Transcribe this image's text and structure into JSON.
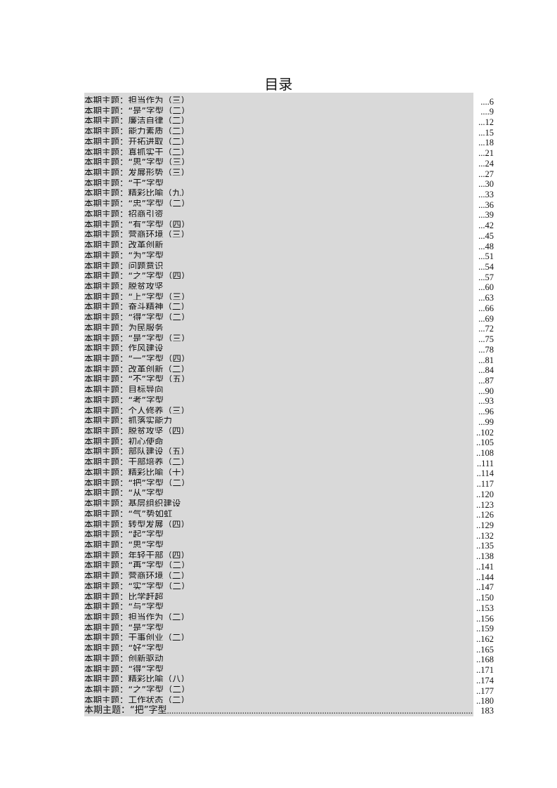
{
  "title": "目录",
  "prefix": "本期主题：",
  "entries": [
    {
      "topic": "担当作为（三）",
      "page": "6"
    },
    {
      "topic": "“是”字型（二）",
      "page": "9"
    },
    {
      "topic": "廉洁自律（二）",
      "page": "12"
    },
    {
      "topic": "能力素质（二）",
      "page": "15"
    },
    {
      "topic": "开拓进取（二）",
      "page": "18"
    },
    {
      "topic": "真抓实干（二）",
      "page": "21"
    },
    {
      "topic": "“思”字型（三）",
      "page": "24"
    },
    {
      "topic": "发展形势（三）",
      "page": "27"
    },
    {
      "topic": "“干”字型",
      "page": "30"
    },
    {
      "topic": "精彩比喻（九）",
      "page": "33"
    },
    {
      "topic": "“忠”字型（二）",
      "page": "36"
    },
    {
      "topic": "招商引资",
      "page": "39"
    },
    {
      "topic": "“有”字型（四）",
      "page": "42"
    },
    {
      "topic": "营商环境（三）",
      "page": "45"
    },
    {
      "topic": "改革创新",
      "page": "48"
    },
    {
      "topic": "“为”字型",
      "page": "51"
    },
    {
      "topic": "问题意识",
      "page": "54"
    },
    {
      "topic": "“之”字型（四）",
      "page": "57"
    },
    {
      "topic": "脱贫攻坚",
      "page": "60"
    },
    {
      "topic": "“上”字型（三）",
      "page": "63"
    },
    {
      "topic": "奋斗精神（二）",
      "page": "66"
    },
    {
      "topic": "“得”字型（二）",
      "page": "69"
    },
    {
      "topic": "为民服务",
      "page": "72"
    },
    {
      "topic": "“是”字型（三）",
      "page": "75"
    },
    {
      "topic": "作风建设",
      "page": "78"
    },
    {
      "topic": "“一”字型（四）",
      "page": "81"
    },
    {
      "topic": "改革创新（二）",
      "page": "84"
    },
    {
      "topic": "“不”字型（五）",
      "page": "87"
    },
    {
      "topic": "目标导向",
      "page": "90"
    },
    {
      "topic": "“考”字型",
      "page": "93"
    },
    {
      "topic": "个人修养（三）",
      "page": "96"
    },
    {
      "topic": "抓落实能力",
      "page": "99"
    },
    {
      "topic": "脱贫攻坚（四）",
      "page": "102"
    },
    {
      "topic": "初心使命",
      "page": "105"
    },
    {
      "topic": "部队建设（五）",
      "page": "108"
    },
    {
      "topic": "干部培养（二）",
      "page": "111"
    },
    {
      "topic": "精彩比喻（十）",
      "page": "114"
    },
    {
      "topic": "“把”字型（二）",
      "page": "117"
    },
    {
      "topic": "“从”字型",
      "page": "120"
    },
    {
      "topic": "基层组织建设",
      "page": "123"
    },
    {
      "topic": "“气”势如虹",
      "page": "126"
    },
    {
      "topic": "转型发展（四）",
      "page": "129"
    },
    {
      "topic": "“起”字型",
      "page": "132"
    },
    {
      "topic": "“思”字型",
      "page": "135"
    },
    {
      "topic": "年轻干部（四）",
      "page": "138"
    },
    {
      "topic": "“再”字型（二）",
      "page": "141"
    },
    {
      "topic": "营商环境（二）",
      "page": "144"
    },
    {
      "topic": "“实”字型（二）",
      "page": "147"
    },
    {
      "topic": "比学赶超",
      "page": "150"
    },
    {
      "topic": "“与”字型",
      "page": "153"
    },
    {
      "topic": "担当作为（二）",
      "page": "156"
    },
    {
      "topic": "“是”字型",
      "page": "159"
    },
    {
      "topic": "干事创业（二）",
      "page": "162"
    },
    {
      "topic": "“好”字型",
      "page": "165"
    },
    {
      "topic": "创新驱动",
      "page": "168"
    },
    {
      "topic": "“得”字型",
      "page": "171"
    },
    {
      "topic": "精彩比喻（八）",
      "page": "174"
    },
    {
      "topic": "“之”字型（二）",
      "page": "177"
    },
    {
      "topic": "工作状态（二）",
      "page": "180"
    }
  ],
  "last_entry": {
    "topic": "“把”字型",
    "page": "183"
  }
}
